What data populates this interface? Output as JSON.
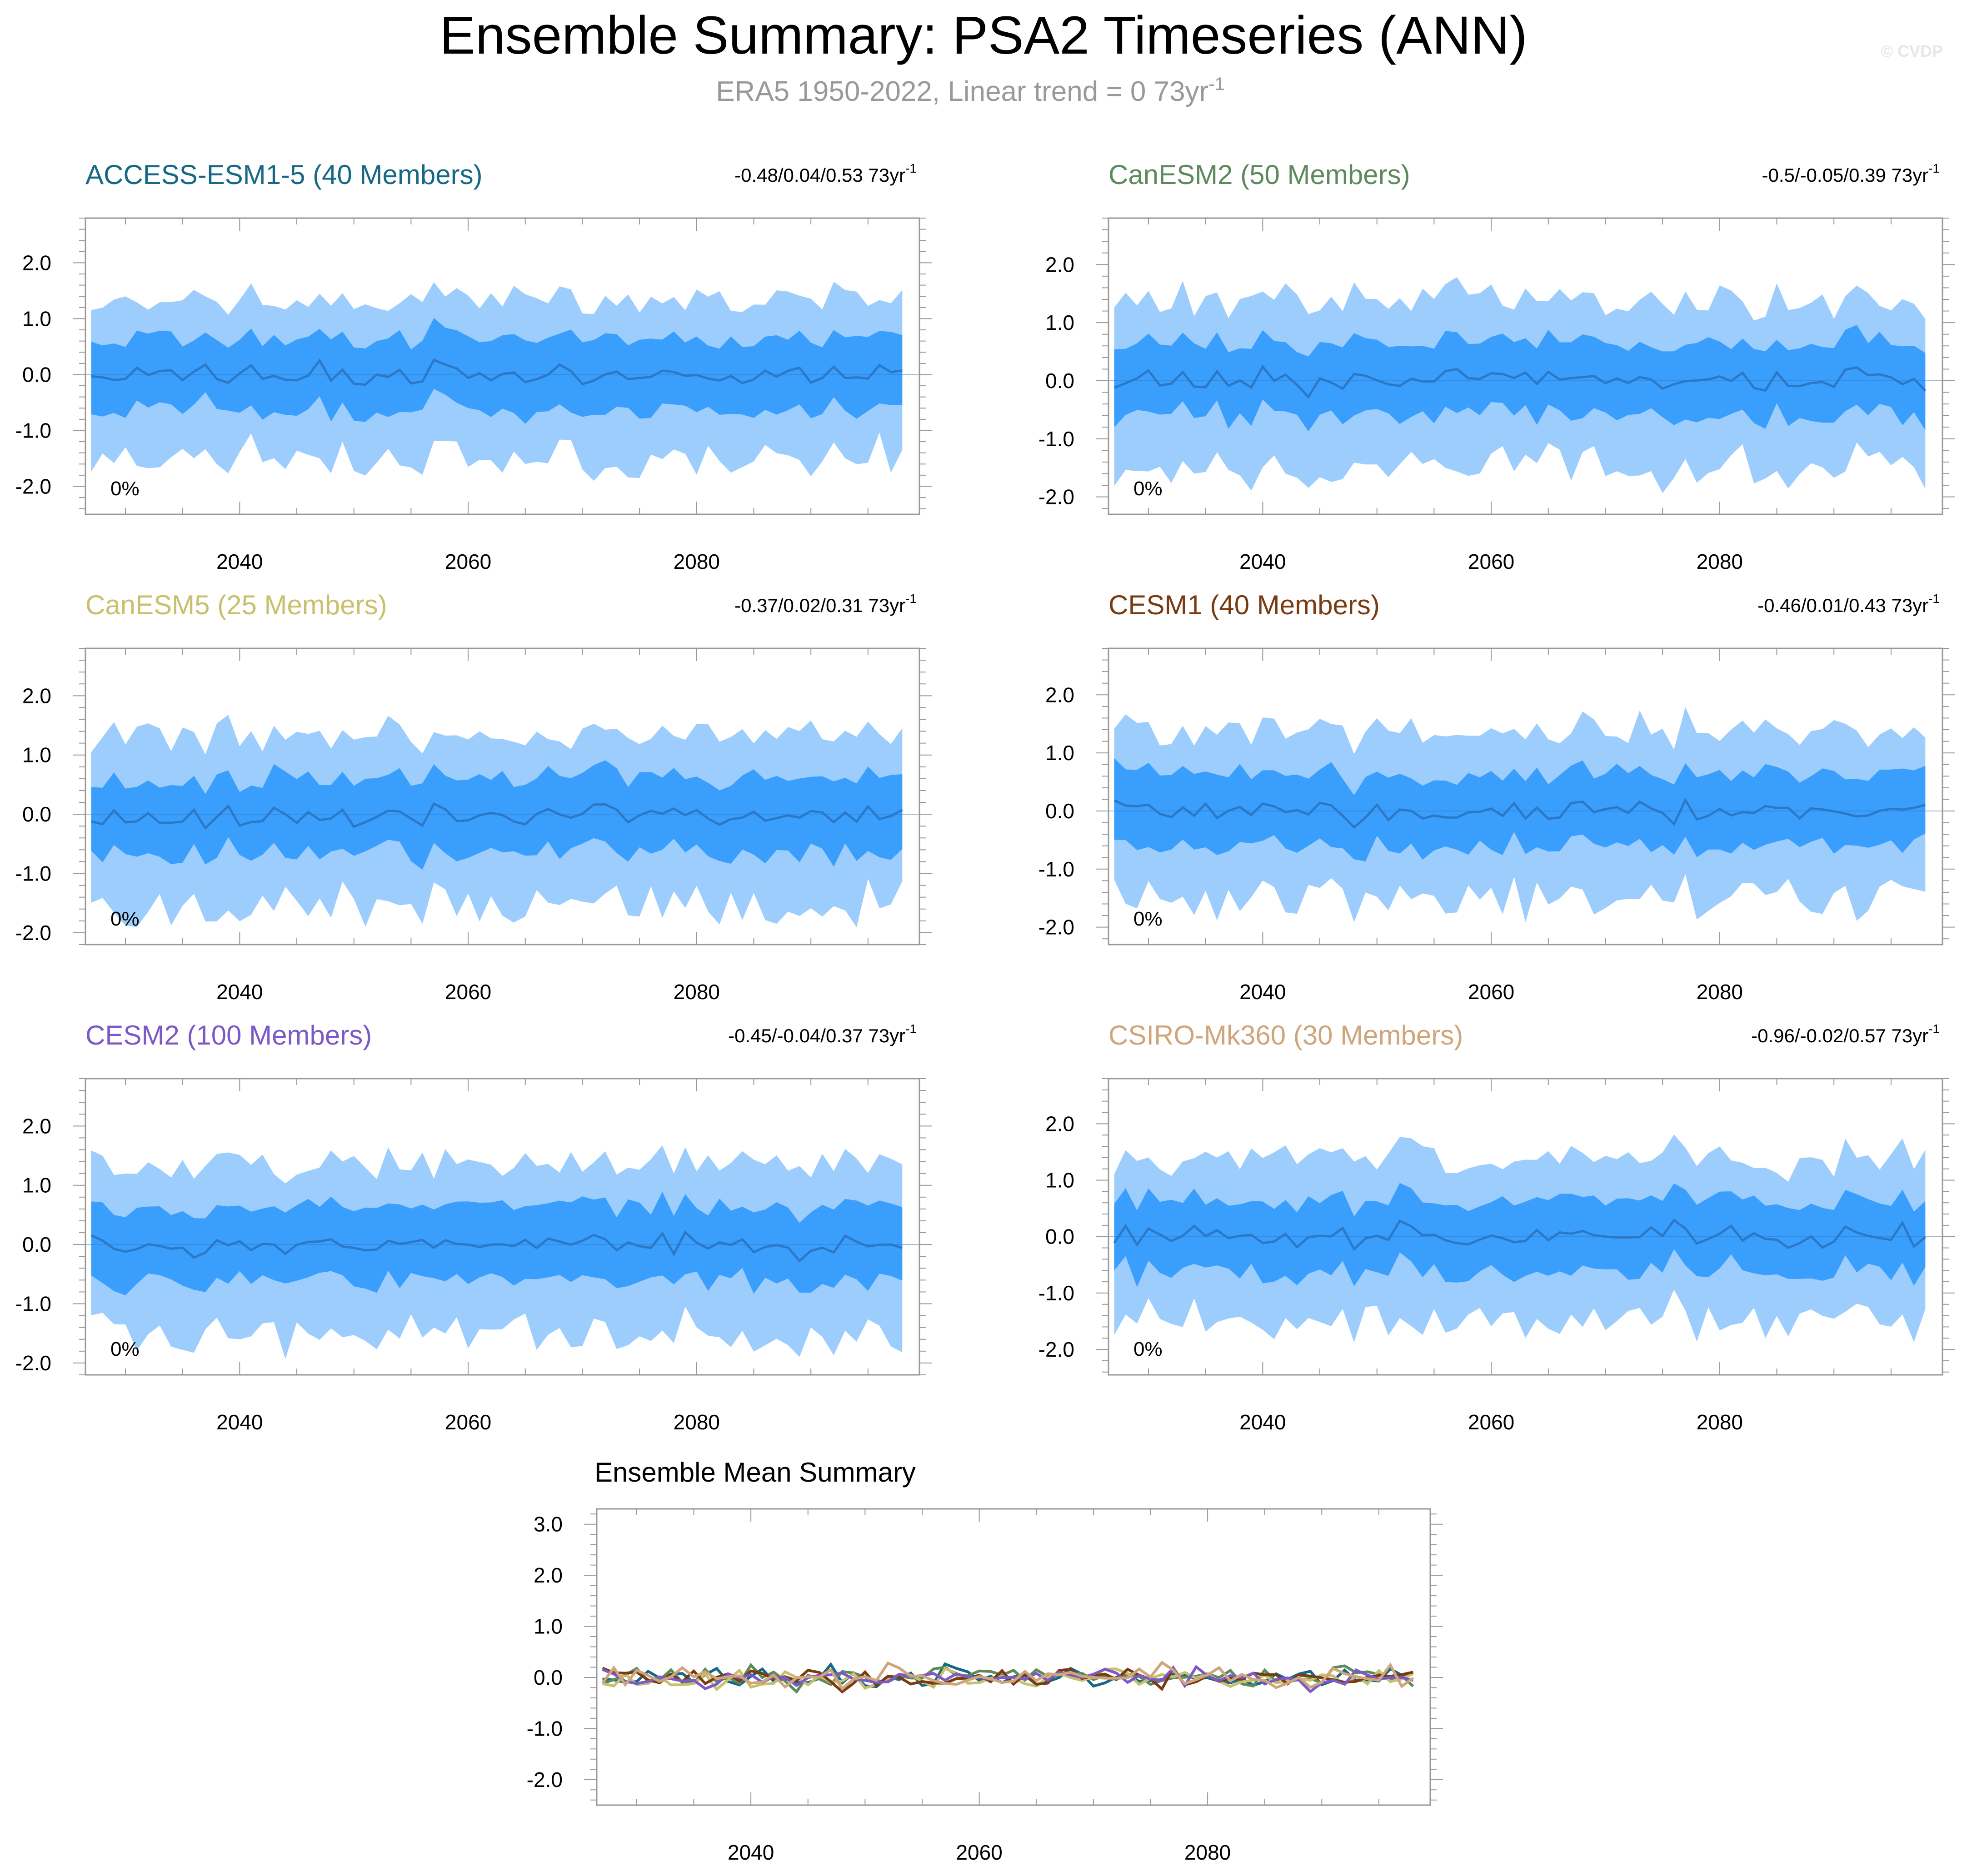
{
  "header": {
    "title": "Ensemble Summary: PSA2 Timeseries (ANN)",
    "subtitle_main": "ERA5 1950-2022, Linear trend = 0 73yr",
    "subtitle_sup": "-1",
    "copyright": "© CVDP"
  },
  "colors": {
    "band_outer": "#9dcdfc",
    "band_inner": "#3a9efd",
    "mean_line": "#2b79c6",
    "axis": "#999999",
    "text": "#000000"
  },
  "chart_data": [
    {
      "type": "area",
      "model": "ACCESS-ESM1-5",
      "members": "40 Members",
      "title": "ACCESS-ESM1-5 (40 Members)",
      "title_color": "#166885",
      "trend_text": "-0.48/0.04/0.53 73yr",
      "trend_sup": "-1",
      "percent_label": "0%",
      "xlim": [
        2026.5,
        2099.5
      ],
      "ylim": [
        -2.5,
        2.8
      ],
      "xticks": [
        2040,
        2060,
        2080
      ],
      "xtick_labels": [
        "2040",
        "2060",
        "2080"
      ],
      "yticks": [
        -2.0,
        -1.0,
        0.0,
        1.0,
        2.0
      ],
      "ytick_labels": [
        "-2.0",
        "-1.0",
        "0.0",
        "1.0",
        "2.0"
      ],
      "x": [
        2027,
        2098
      ],
      "seed": 11,
      "series": [
        "5-95% range",
        "25-75% range",
        "ensemble mean"
      ]
    },
    {
      "type": "area",
      "model": "CanESM2",
      "members": "50 Members",
      "title": "CanESM2 (50 Members)",
      "title_color": "#5c8a5c",
      "trend_text": "-0.5/-0.05/0.39 73yr",
      "trend_sup": "-1",
      "percent_label": "0%",
      "xlim": [
        2026.5,
        2099.5
      ],
      "ylim": [
        -2.3,
        2.8
      ],
      "xticks": [
        2040,
        2060,
        2080
      ],
      "xtick_labels": [
        "2040",
        "2060",
        "2080"
      ],
      "yticks": [
        -2.0,
        -1.0,
        0.0,
        1.0,
        2.0
      ],
      "ytick_labels": [
        "-2.0",
        "-1.0",
        "0.0",
        "1.0",
        "2.0"
      ],
      "x": [
        2027,
        2098
      ],
      "seed": 23,
      "series": [
        "5-95% range",
        "25-75% range",
        "ensemble mean"
      ]
    },
    {
      "type": "area",
      "model": "CanESM5",
      "members": "25 Members",
      "title": "CanESM5 (25 Members)",
      "title_color": "#c9c06d",
      "trend_text": "-0.37/0.02/0.31 73yr",
      "trend_sup": "-1",
      "percent_label": "0%",
      "xlim": [
        2026.5,
        2099.5
      ],
      "ylim": [
        -2.2,
        2.8
      ],
      "xticks": [
        2040,
        2060,
        2080
      ],
      "xtick_labels": [
        "2040",
        "2060",
        "2080"
      ],
      "yticks": [
        -2.0,
        -1.0,
        0.0,
        1.0,
        2.0
      ],
      "ytick_labels": [
        "-2.0",
        "-1.0",
        "0.0",
        "1.0",
        "2.0"
      ],
      "x": [
        2027,
        2098
      ],
      "seed": 37,
      "series": [
        "5-95% range",
        "25-75% range",
        "ensemble mean"
      ]
    },
    {
      "type": "area",
      "model": "CESM1",
      "members": "40 Members",
      "title": "CESM1 (40 Members)",
      "title_color": "#7a3b12",
      "trend_text": "-0.46/0.01/0.43 73yr",
      "trend_sup": "-1",
      "percent_label": "0%",
      "xlim": [
        2026.5,
        2099.5
      ],
      "ylim": [
        -2.3,
        2.8
      ],
      "xticks": [
        2040,
        2060,
        2080
      ],
      "xtick_labels": [
        "2040",
        "2060",
        "2080"
      ],
      "yticks": [
        -2.0,
        -1.0,
        0.0,
        1.0,
        2.0
      ],
      "ytick_labels": [
        "-2.0",
        "-1.0",
        "0.0",
        "1.0",
        "2.0"
      ],
      "x": [
        2027,
        2098
      ],
      "seed": 41,
      "series": [
        "5-95% range",
        "25-75% range",
        "ensemble mean"
      ]
    },
    {
      "type": "area",
      "model": "CESM2",
      "members": "100 Members",
      "title": "CESM2 (100 Members)",
      "title_color": "#7c59c8",
      "trend_text": "-0.45/-0.04/0.37 73yr",
      "trend_sup": "-1",
      "percent_label": "0%",
      "xlim": [
        2026.5,
        2099.5
      ],
      "ylim": [
        -2.2,
        2.8
      ],
      "xticks": [
        2040,
        2060,
        2080
      ],
      "xtick_labels": [
        "2040",
        "2060",
        "2080"
      ],
      "yticks": [
        -2.0,
        -1.0,
        0.0,
        1.0,
        2.0
      ],
      "ytick_labels": [
        "-2.0",
        "-1.0",
        "0.0",
        "1.0",
        "2.0"
      ],
      "x": [
        2027,
        2098
      ],
      "seed": 53,
      "series": [
        "5-95% range",
        "25-75% range",
        "ensemble mean"
      ]
    },
    {
      "type": "area",
      "model": "CSIRO-Mk360",
      "members": "30 Members",
      "title": "CSIRO-Mk360 (30 Members)",
      "title_color": "#cfa67c",
      "trend_text": "-0.96/-0.02/0.57 73yr",
      "trend_sup": "-1",
      "percent_label": "0%",
      "xlim": [
        2026.5,
        2099.5
      ],
      "ylim": [
        -2.45,
        2.8
      ],
      "xticks": [
        2040,
        2060,
        2080
      ],
      "xtick_labels": [
        "2040",
        "2060",
        "2080"
      ],
      "yticks": [
        -2.0,
        -1.0,
        0.0,
        1.0,
        2.0
      ],
      "ytick_labels": [
        "-2.0",
        "-1.0",
        "0.0",
        "1.0",
        "2.0"
      ],
      "x": [
        2027,
        2098
      ],
      "seed": 67,
      "series": [
        "5-95% range",
        "25-75% range",
        "ensemble mean"
      ]
    },
    {
      "type": "line",
      "title": "Ensemble Mean Summary",
      "xlim": [
        2026.5,
        2099.5
      ],
      "ylim": [
        -2.5,
        3.3
      ],
      "xticks": [
        2040,
        2060,
        2080
      ],
      "xtick_labels": [
        "2040",
        "2060",
        "2080"
      ],
      "yticks": [
        -2.0,
        -1.0,
        0.0,
        1.0,
        2.0,
        3.0
      ],
      "ytick_labels": [
        "-2.0",
        "-1.0",
        "0.0",
        "1.0",
        "2.0",
        "3.0"
      ],
      "x": [
        2027,
        2098
      ],
      "series": [
        {
          "name": "ACCESS-ESM1-5",
          "color": "#166885",
          "seed": 11
        },
        {
          "name": "CanESM2",
          "color": "#5c8a5c",
          "seed": 23
        },
        {
          "name": "CanESM5",
          "color": "#c9c06d",
          "seed": 37
        },
        {
          "name": "CESM1",
          "color": "#7a3b12",
          "seed": 41
        },
        {
          "name": "CESM2",
          "color": "#7c59c8",
          "seed": 53
        },
        {
          "name": "CSIRO-Mk360",
          "color": "#cfa67c",
          "seed": 67
        }
      ]
    }
  ]
}
